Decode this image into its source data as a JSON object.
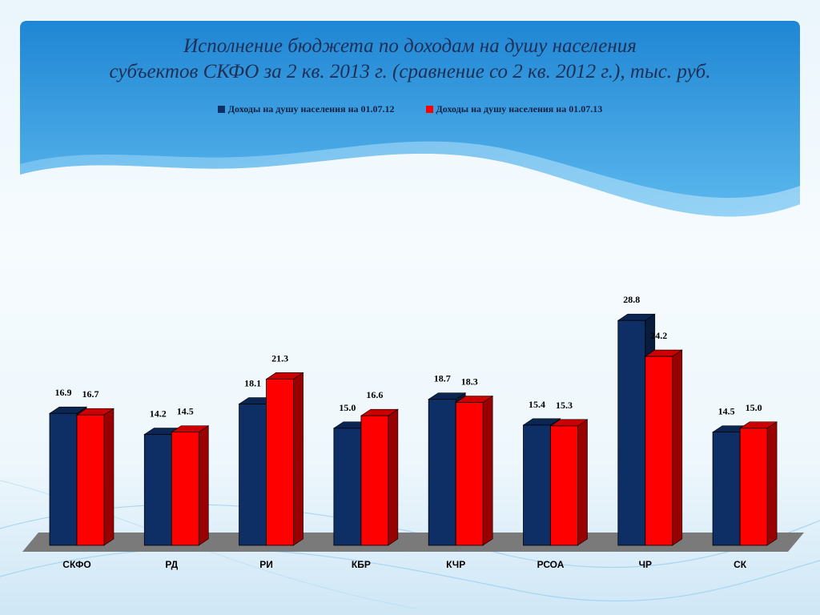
{
  "title_lines": [
    "Исполнение бюджета по доходам на душу населения",
    "субъектов СКФО за 2 кв. 2013 г. (сравнение со 2 кв. 2012 г.), тыс. руб."
  ],
  "colors": {
    "series1": "#0e2f66",
    "series2": "#ff0000",
    "floor": "#7a7a7a",
    "header_blue": "#2b8fd6"
  },
  "chart_data": {
    "type": "bar",
    "title": "Исполнение бюджета по доходам на душу населения субъектов СКФО за 2 кв. 2013 г. (сравнение со 2 кв. 2012 г.), тыс. руб.",
    "categories": [
      "СКФО",
      "РД",
      "РИ",
      "КБР",
      "КЧР",
      "РСОА",
      "ЧР",
      "СК"
    ],
    "series": [
      {
        "name": "Доходы на душу населения на 01.07.12",
        "values": [
          16.9,
          14.2,
          18.1,
          15.0,
          18.7,
          15.4,
          28.8,
          14.5
        ],
        "color": "#0e2f66"
      },
      {
        "name": "Доходы на душу населения на 01.07.13",
        "values": [
          16.7,
          14.5,
          21.3,
          16.6,
          18.3,
          15.3,
          24.2,
          15.0
        ],
        "color": "#ff0000"
      }
    ],
    "ylim": [
      0,
      30
    ],
    "grid": false,
    "legend_position": "top",
    "style": "3d-clustered-column"
  }
}
